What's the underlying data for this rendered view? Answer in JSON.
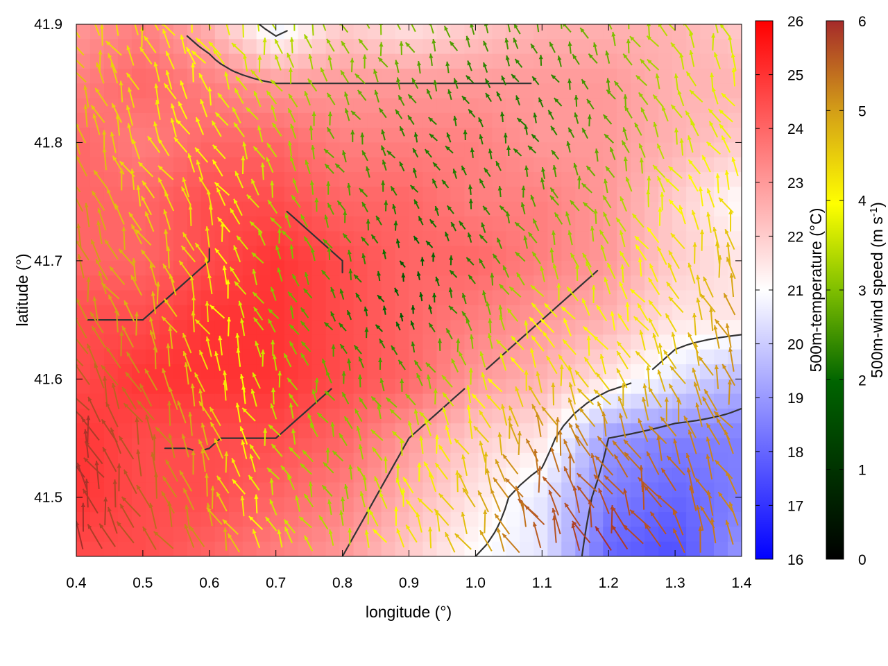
{
  "chart_data": {
    "type": "heatmap",
    "title": "",
    "xlabel": "longitude (°)",
    "ylabel": "latitude (°)",
    "xlim": [
      0.4,
      1.4
    ],
    "ylim": [
      41.45,
      41.9
    ],
    "x_ticks": [
      "0.4",
      "0.5",
      "0.6",
      "0.7",
      "0.8",
      "0.9",
      "1.0",
      "1.1",
      "1.2",
      "1.3",
      "1.4"
    ],
    "y_ticks": [
      "41.5",
      "41.6",
      "41.7",
      "41.8",
      "41.9"
    ],
    "grid": false,
    "overlay": "wind vectors (arrows) colored by wind speed, dark grey contour lines",
    "colorbars": [
      {
        "label": "500m-temperature (°C)",
        "range": [
          16,
          26
        ],
        "ticks": [
          "16",
          "17",
          "18",
          "19",
          "20",
          "21",
          "22",
          "23",
          "24",
          "25",
          "26"
        ],
        "colors": [
          "#0000ff",
          "#ffffff",
          "#ff0000"
        ]
      },
      {
        "label_main": "500m-wind speed (m s",
        "label_sup": "-1",
        "label_end": ")",
        "range": [
          0,
          6
        ],
        "ticks": [
          "0",
          "1",
          "2",
          "3",
          "4",
          "5",
          "6"
        ],
        "colors": [
          "#000000",
          "#006400",
          "#7fbf00",
          "#ffff00",
          "#d4a017",
          "#a52a2a"
        ]
      }
    ],
    "temperature_field": {
      "x": [
        0.4,
        0.5,
        0.6,
        0.7,
        0.8,
        0.9,
        1.0,
        1.1,
        1.2,
        1.3,
        1.4
      ],
      "y": [
        41.9,
        41.85,
        41.8,
        41.75,
        41.7,
        41.65,
        41.6,
        41.55,
        41.5,
        41.45
      ],
      "values": [
        [
          23.0,
          23.5,
          22.5,
          20.5,
          22.0,
          21.5,
          22.0,
          22.5,
          22.5,
          22.5,
          22.0
        ],
        [
          23.5,
          24.0,
          23.5,
          23.0,
          23.0,
          23.0,
          23.0,
          23.0,
          23.0,
          22.5,
          22.5
        ],
        [
          24.0,
          23.5,
          24.0,
          24.0,
          23.5,
          23.5,
          23.5,
          23.0,
          23.0,
          22.5,
          22.0
        ],
        [
          24.0,
          24.0,
          24.5,
          24.5,
          24.0,
          24.0,
          23.5,
          23.5,
          23.0,
          22.0,
          21.0
        ],
        [
          24.0,
          24.0,
          24.5,
          25.0,
          24.5,
          24.0,
          24.0,
          23.5,
          23.0,
          22.0,
          21.5
        ],
        [
          24.5,
          24.5,
          25.0,
          25.0,
          24.5,
          24.0,
          23.5,
          23.0,
          22.5,
          21.5,
          21.5
        ],
        [
          24.5,
          25.0,
          25.0,
          25.0,
          24.5,
          24.0,
          23.0,
          22.5,
          21.5,
          20.5,
          19.5
        ],
        [
          25.0,
          24.5,
          24.5,
          24.5,
          24.0,
          23.0,
          22.0,
          21.5,
          19.0,
          18.5,
          18.5
        ],
        [
          25.0,
          24.5,
          24.5,
          24.0,
          23.5,
          22.5,
          21.5,
          20.5,
          18.5,
          18.0,
          18.5
        ],
        [
          24.5,
          24.5,
          24.0,
          23.5,
          23.0,
          22.0,
          21.0,
          20.5,
          18.0,
          17.5,
          19.0
        ]
      ]
    },
    "wind_speed_field": {
      "x": [
        0.4,
        0.5,
        0.6,
        0.7,
        0.8,
        0.9,
        1.0,
        1.1,
        1.2,
        1.3,
        1.4
      ],
      "y": [
        41.9,
        41.85,
        41.8,
        41.75,
        41.7,
        41.65,
        41.6,
        41.55,
        41.5,
        41.45
      ],
      "values": [
        [
          4.0,
          4.0,
          3.5,
          3.0,
          2.5,
          2.5,
          2.0,
          2.0,
          2.5,
          3.0,
          3.0
        ],
        [
          4.5,
          4.0,
          3.5,
          3.0,
          2.5,
          2.0,
          1.5,
          1.5,
          2.0,
          3.0,
          3.5
        ],
        [
          4.5,
          4.0,
          3.5,
          3.0,
          2.0,
          1.5,
          1.5,
          1.5,
          2.0,
          3.0,
          3.5
        ],
        [
          5.0,
          4.0,
          4.0,
          3.0,
          2.0,
          1.5,
          1.5,
          2.0,
          2.5,
          3.5,
          4.0
        ],
        [
          5.0,
          4.5,
          4.0,
          2.5,
          2.0,
          1.0,
          1.5,
          2.5,
          3.0,
          4.0,
          4.5
        ],
        [
          5.0,
          4.5,
          4.0,
          2.5,
          1.5,
          1.0,
          2.0,
          3.5,
          3.5,
          4.0,
          5.0
        ],
        [
          5.5,
          5.0,
          4.0,
          3.0,
          2.0,
          2.0,
          3.0,
          4.0,
          4.0,
          4.5,
          5.0
        ],
        [
          6.0,
          5.5,
          4.5,
          3.0,
          2.5,
          3.0,
          4.0,
          5.0,
          5.0,
          5.0,
          5.0
        ],
        [
          6.0,
          5.5,
          4.5,
          3.0,
          2.5,
          3.5,
          4.5,
          5.5,
          5.5,
          5.5,
          5.0
        ],
        [
          6.0,
          5.5,
          5.0,
          3.5,
          3.0,
          4.0,
          4.5,
          5.5,
          6.0,
          5.5,
          5.0
        ]
      ]
    }
  }
}
